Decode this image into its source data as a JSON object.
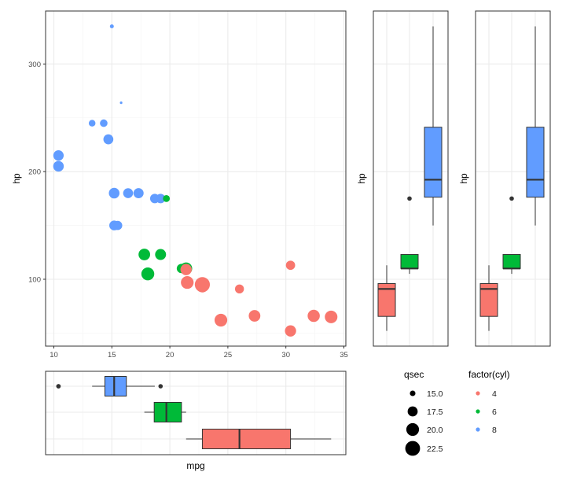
{
  "chart_data": [
    {
      "type": "scatter",
      "xlabel": "mpg",
      "ylabel": "hp",
      "xlim": [
        9.25,
        35.2
      ],
      "ylim": [
        38,
        349
      ],
      "xticks": [
        "10",
        "15",
        "20",
        "25",
        "30",
        "35"
      ],
      "yticks": [
        "100",
        "200",
        "300"
      ],
      "grid": true,
      "size_variable": "qsec",
      "color_variable": "factor(cyl)",
      "colors": {
        "4": "#F8766D",
        "6": "#00BA38",
        "8": "#619CFF"
      },
      "fields": [
        "mpg",
        "hp",
        "qsec",
        "cyl"
      ],
      "points": [
        [
          21.0,
          110,
          16.46,
          6
        ],
        [
          21.0,
          110,
          17.02,
          6
        ],
        [
          22.8,
          93,
          18.61,
          4
        ],
        [
          21.4,
          110,
          19.44,
          6
        ],
        [
          18.7,
          175,
          17.02,
          8
        ],
        [
          18.1,
          105,
          20.22,
          6
        ],
        [
          14.3,
          245,
          15.84,
          8
        ],
        [
          24.4,
          62,
          20.0,
          4
        ],
        [
          22.8,
          95,
          22.9,
          4
        ],
        [
          19.2,
          123,
          18.3,
          6
        ],
        [
          17.8,
          123,
          18.9,
          6
        ],
        [
          16.4,
          180,
          17.4,
          8
        ],
        [
          17.3,
          180,
          17.6,
          8
        ],
        [
          15.2,
          180,
          18.0,
          8
        ],
        [
          10.4,
          205,
          17.98,
          8
        ],
        [
          10.4,
          215,
          17.82,
          8
        ],
        [
          14.7,
          230,
          17.42,
          8
        ],
        [
          32.4,
          66,
          19.47,
          4
        ],
        [
          30.4,
          52,
          18.52,
          4
        ],
        [
          33.9,
          65,
          19.9,
          4
        ],
        [
          21.5,
          97,
          20.01,
          4
        ],
        [
          15.5,
          150,
          16.87,
          8
        ],
        [
          15.2,
          150,
          17.3,
          8
        ],
        [
          13.3,
          245,
          15.41,
          8
        ],
        [
          19.2,
          175,
          17.05,
          8
        ],
        [
          27.3,
          66,
          18.9,
          4
        ],
        [
          26.0,
          91,
          16.7,
          4
        ],
        [
          30.4,
          113,
          16.9,
          4
        ],
        [
          15.8,
          264,
          14.5,
          8
        ],
        [
          19.7,
          175,
          15.5,
          6
        ],
        [
          15.0,
          335,
          14.6,
          8
        ],
        [
          21.4,
          109,
          18.6,
          4
        ]
      ]
    },
    {
      "type": "boxplot",
      "orientation": "horizontal",
      "xlabel": "mpg",
      "groups": [
        {
          "cyl": "8",
          "lower_whisker": 13.3,
          "q1": 14.4,
          "median": 15.2,
          "q3": 16.25,
          "upper_whisker": 18.7,
          "outliers": [
            10.4,
            10.4,
            19.2
          ]
        },
        {
          "cyl": "6",
          "lower_whisker": 17.8,
          "q1": 18.65,
          "median": 19.7,
          "q3": 21.0,
          "upper_whisker": 21.4,
          "outliers": []
        },
        {
          "cyl": "4",
          "lower_whisker": 21.4,
          "q1": 22.8,
          "median": 26.0,
          "q3": 30.4,
          "upper_whisker": 33.9,
          "outliers": []
        }
      ]
    },
    {
      "type": "boxplot",
      "orientation": "vertical",
      "ylabel": "hp",
      "groups": [
        {
          "cyl": "4",
          "lower_whisker": 52,
          "q1": 65.5,
          "median": 91,
          "q3": 96,
          "upper_whisker": 113,
          "outliers": []
        },
        {
          "cyl": "6",
          "lower_whisker": 105,
          "q1": 110,
          "median": 110,
          "q3": 123,
          "upper_whisker": 123,
          "outliers": [
            175
          ]
        },
        {
          "cyl": "8",
          "lower_whisker": 150,
          "q1": 176.25,
          "median": 192.5,
          "q3": 241.25,
          "upper_whisker": 335,
          "outliers": []
        }
      ]
    },
    {
      "type": "boxplot",
      "orientation": "vertical",
      "ylabel": "hp",
      "groups": [
        {
          "cyl": "4",
          "lower_whisker": 52,
          "q1": 65.5,
          "median": 91,
          "q3": 96,
          "upper_whisker": 113,
          "outliers": []
        },
        {
          "cyl": "6",
          "lower_whisker": 105,
          "q1": 110,
          "median": 110,
          "q3": 123,
          "upper_whisker": 123,
          "outliers": [
            175
          ]
        },
        {
          "cyl": "8",
          "lower_whisker": 150,
          "q1": 176.25,
          "median": 192.5,
          "q3": 241.25,
          "upper_whisker": 335,
          "outliers": []
        }
      ]
    }
  ],
  "legend": {
    "size_title": "qsec",
    "size_entries": [
      "15.0",
      "17.5",
      "20.0",
      "22.5"
    ],
    "color_title": "factor(cyl)",
    "color_entries": [
      "4",
      "6",
      "8"
    ]
  }
}
